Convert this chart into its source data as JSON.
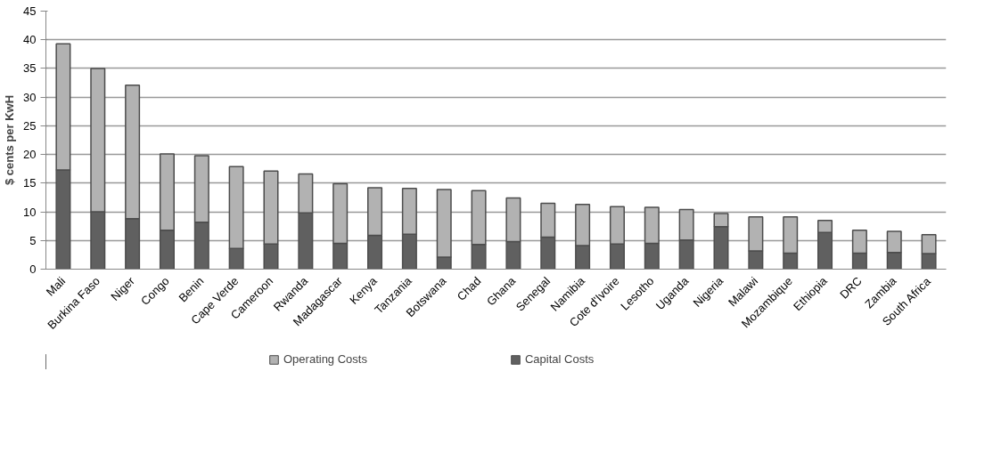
{
  "chart_data": {
    "type": "bar",
    "stacked": true,
    "ylabel": "$ cents per KwH",
    "categories": [
      "Mali",
      "Burkina Faso",
      "Niger",
      "Congo",
      "Benin",
      "Cape Verde",
      "Cameroon",
      "Rwanda",
      "Madagascar",
      "Kenya",
      "Tanzania",
      "Botswana",
      "Chad",
      "Ghana",
      "Senegal",
      "Namibia",
      "Cote d'Ivoire",
      "Lesotho",
      "Uganda",
      "Nigeria",
      "Malawi",
      "Mozambique",
      "Ethiopia",
      "DRC",
      "Zambia",
      "South Africa"
    ],
    "series": [
      {
        "name": "Capital Costs",
        "color": "#606060",
        "values": [
          17.3,
          10,
          8.8,
          6.8,
          8.2,
          3.6,
          4.4,
          9.8,
          4.5,
          5.9,
          6.1,
          2.1,
          4.3,
          4.8,
          5.6,
          4.1,
          4.4,
          4.5,
          5.1,
          7.4,
          3.2,
          2.8,
          6.4,
          2.8,
          2.9,
          2.7
        ]
      },
      {
        "name": "Operating Costs",
        "color": "#b2b2b2",
        "values": [
          22.0,
          25.0,
          23.3,
          13.3,
          11.6,
          14.3,
          12.7,
          6.8,
          10.4,
          8.3,
          8.0,
          11.8,
          9.4,
          7.6,
          5.9,
          7.2,
          6.5,
          6.3,
          5.3,
          2.3,
          5.9,
          6.3,
          2.1,
          4.0,
          3.7,
          3.3
        ]
      }
    ],
    "ylim": [
      0,
      45
    ],
    "yticks": [
      0,
      5,
      10,
      15,
      20,
      25,
      30,
      35,
      40,
      45
    ],
    "grid": "y",
    "legend": "bottom"
  }
}
